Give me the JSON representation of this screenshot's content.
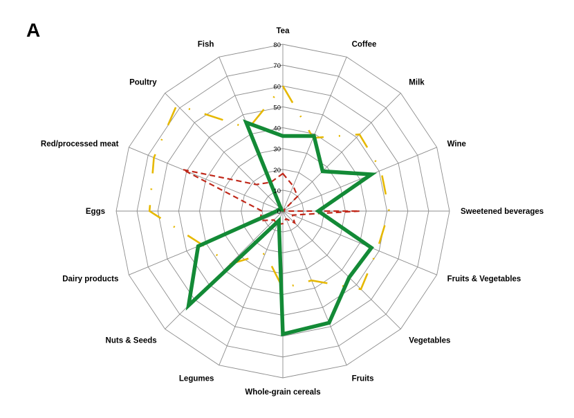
{
  "panel_label": "A",
  "chart_data": {
    "type": "radar",
    "categories": [
      "Tea",
      "Coffee",
      "Milk",
      "Wine",
      "Sweetened beverages",
      "Fruits & Vegetables",
      "Vegetables",
      "Fruits",
      "Whole-grain cereals",
      "Legumes",
      "Nuts & Seeds",
      "Dairy products",
      "Eggs",
      "Red/processed meat",
      "Poultry",
      "Fish"
    ],
    "rlim": [
      0,
      80
    ],
    "ticks": [
      0,
      10,
      20,
      30,
      40,
      50,
      60,
      70,
      80
    ],
    "tick_labels": [
      "0",
      "10",
      "20",
      "30",
      "40",
      "50",
      "60",
      "70",
      "80"
    ],
    "grid": true,
    "series": [
      {
        "values": [
          36,
          39,
          27,
          46,
          17,
          46,
          45,
          58,
          59,
          5,
          64,
          44,
          3,
          2,
          1,
          46
        ],
        "color": "#138a36",
        "style": "solid"
      },
      {
        "values": [
          60,
          38,
          52,
          51,
          51,
          49,
          53,
          36,
          37,
          22,
          36,
          42,
          64,
          67,
          72,
          43
        ],
        "color": "#e6b800",
        "style": "dashed"
      },
      {
        "values": [
          18,
          13,
          10,
          0,
          37,
          5,
          8,
          4,
          6,
          7,
          6,
          12,
          10,
          52,
          18,
          15
        ],
        "color": "#c0281a",
        "style": "dashed"
      }
    ]
  }
}
